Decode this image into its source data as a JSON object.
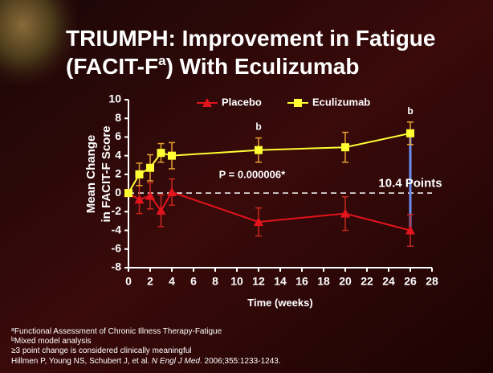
{
  "chart_data": {
    "type": "line",
    "title": {
      "line1": "TRIUMPH: Improvement in Fatigue",
      "line2": [
        "(FACIT-F",
        "a",
        ") With Eculizumab"
      ]
    },
    "x_label": "Time (weeks)",
    "y_label": [
      "Mean Change",
      "in FACIT-F Score"
    ],
    "x": [
      0,
      1,
      2,
      3,
      4,
      12,
      20,
      26
    ],
    "series": [
      {
        "name": "Placebo",
        "color": "#e3141c",
        "marker": "triangle",
        "error_color": "#c8281e",
        "values": [
          0,
          -0.7,
          -0.3,
          -1.9,
          0.1,
          -3.1,
          -2.2,
          -4.0
        ],
        "errors": [
          0,
          1.5,
          1.4,
          1.7,
          1.4,
          1.5,
          1.8,
          1.7
        ]
      },
      {
        "name": "Eculizumab",
        "color": "#ffff33",
        "marker": "square",
        "error_color": "#e8a030",
        "values": [
          0,
          2.0,
          2.7,
          4.3,
          4.0,
          4.6,
          4.9,
          6.4
        ],
        "errors": [
          0,
          1.2,
          1.4,
          1.0,
          1.4,
          1.3,
          1.6,
          1.2
        ]
      }
    ],
    "xlim": [
      0,
      28
    ],
    "xticks": [
      0,
      2,
      4,
      6,
      8,
      10,
      12,
      14,
      16,
      18,
      20,
      22,
      24,
      26,
      28
    ],
    "ylim": [
      -8,
      10
    ],
    "yticks": [
      -8,
      -6,
      -4,
      -2,
      0,
      2,
      4,
      6,
      8,
      10
    ],
    "annotations": {
      "b_marks": [
        "b",
        "b"
      ],
      "p_value": "P = 0.000006*",
      "difference": "10.4 Points"
    },
    "footnotes": [
      {
        "marker": "a",
        "text": "Functional Assessment of Chronic Illness Therapy-Fatigue"
      },
      {
        "marker": "b",
        "text": "Mixed model analysis"
      },
      {
        "text": "≥3 point change is considered clinically meaningful"
      },
      {
        "parts": [
          "Hillmen P, Young NS, Schubert J, et al. ",
          "N Engl J Med",
          ". 2006;355:1233-1243."
        ]
      }
    ]
  }
}
